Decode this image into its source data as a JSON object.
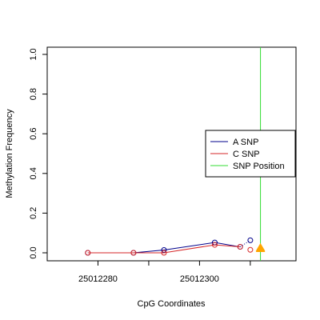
{
  "chart_data": {
    "type": "line",
    "xlabel": "CpG Coordinates",
    "ylabel": "Methylation Frequency",
    "xlim": [
      25012270,
      25012319
    ],
    "ylim": [
      0,
      1.04
    ],
    "x_ticks": [
      25012280,
      25012300
    ],
    "x_tick_labels": [
      "25012280",
      "25012300"
    ],
    "y_ticks": [
      0.0,
      0.2,
      0.4,
      0.6,
      0.8,
      1.0
    ],
    "y_tick_labels": [
      "0.0",
      "0.2",
      "0.4",
      "0.6",
      "0.8",
      "1.0"
    ],
    "series": [
      {
        "name": "A SNP",
        "color": "#00008b",
        "x": [
          25012278,
          25012287,
          25012293,
          25012303,
          25012308
        ],
        "y": [
          0.0,
          0.0,
          0.014,
          0.052,
          0.03
        ]
      },
      {
        "name": "C SNP",
        "color": "#d62728",
        "x": [
          25012278,
          25012287,
          25012293,
          25012303,
          25012308
        ],
        "y": [
          0.0,
          0.0,
          0.0,
          0.04,
          0.03
        ]
      }
    ],
    "extra_points": [
      {
        "series": "A SNP",
        "x": 25012310,
        "y": 0.063,
        "color": "#00008b"
      },
      {
        "series": "C SNP",
        "x": 25012310,
        "y": 0.015,
        "color": "#d62728"
      }
    ],
    "snp_position": {
      "name": "SNP Position",
      "x": 25012312,
      "color": "#33dd33"
    },
    "snp_markers": [
      {
        "x": 25012312,
        "y": 0.025,
        "color": "#ffa500"
      },
      {
        "x": 25012312,
        "y": 0.02,
        "color": "#ffa500"
      }
    ],
    "legend": {
      "placement": "right",
      "items": [
        {
          "label": "A SNP",
          "color": "#00008b"
        },
        {
          "label": "C SNP",
          "color": "#d62728"
        },
        {
          "label": "SNP Position",
          "color": "#33dd33"
        }
      ]
    }
  }
}
